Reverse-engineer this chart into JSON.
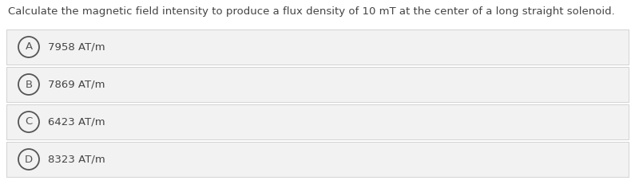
{
  "question": "Calculate the magnetic field intensity to produce a flux density of 10 mT at the center of a long straight solenoid.",
  "options": [
    {
      "label": "A",
      "text": "7958 AT/m"
    },
    {
      "label": "B",
      "text": "7869 AT/m"
    },
    {
      "label": "C",
      "text": "6423 AT/m"
    },
    {
      "label": "D",
      "text": "8323 AT/m"
    }
  ],
  "background_color": "#ffffff",
  "option_bg_color": "#f2f2f2",
  "option_border_color": "#cccccc",
  "text_color": "#444444",
  "circle_edge_color": "#555555",
  "question_fontsize": 9.5,
  "option_fontsize": 9.5,
  "label_fontsize": 9.5,
  "fig_width": 7.95,
  "fig_height": 2.46,
  "dpi": 100
}
